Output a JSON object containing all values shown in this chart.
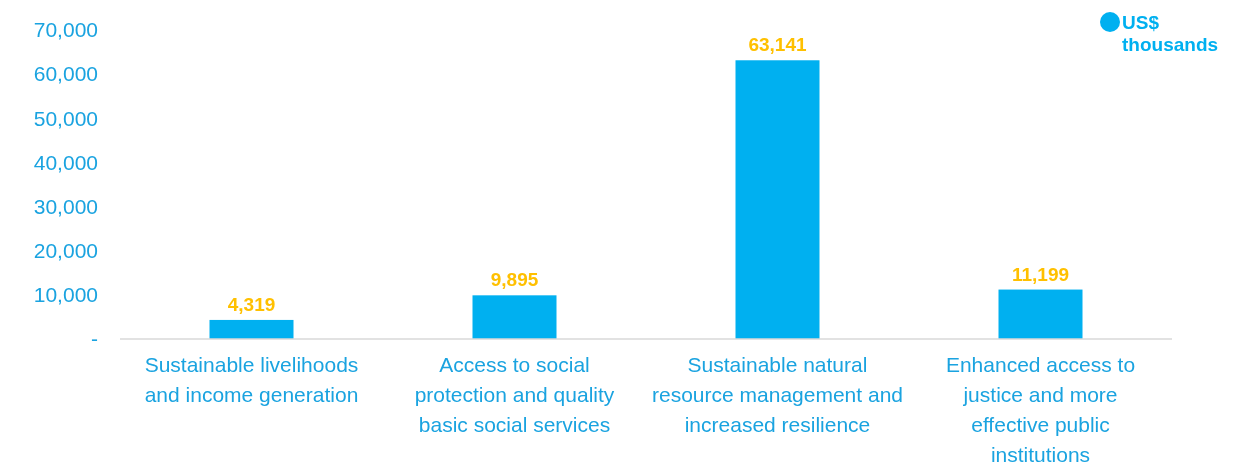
{
  "chart_data": {
    "type": "bar",
    "categories": [
      "Sustainable livelihoods and income generation",
      "Access to social protection and quality basic social services",
      "Sustainable natural resource management and increased resilience",
      "Enhanced access to justice and more effective public institutions"
    ],
    "series": [
      {
        "name": "US$ thousands",
        "color": "#00b0f0",
        "values": [
          4319,
          9895,
          63141,
          11199
        ]
      }
    ],
    "ylim": [
      0,
      70000
    ],
    "yticks": [
      {
        "value": 0,
        "label": "-"
      },
      {
        "value": 10000,
        "label": "10,000"
      },
      {
        "value": 20000,
        "label": "20,000"
      },
      {
        "value": 30000,
        "label": "30,000"
      },
      {
        "value": 40000,
        "label": "40,000"
      },
      {
        "value": 50000,
        "label": "50,000"
      },
      {
        "value": 60000,
        "label": "60,000"
      },
      {
        "value": 70000,
        "label": "70,000"
      }
    ],
    "value_labels": [
      "4,319",
      "9,895",
      "63,141",
      "11,199"
    ],
    "legend": "top right",
    "grid": false
  }
}
